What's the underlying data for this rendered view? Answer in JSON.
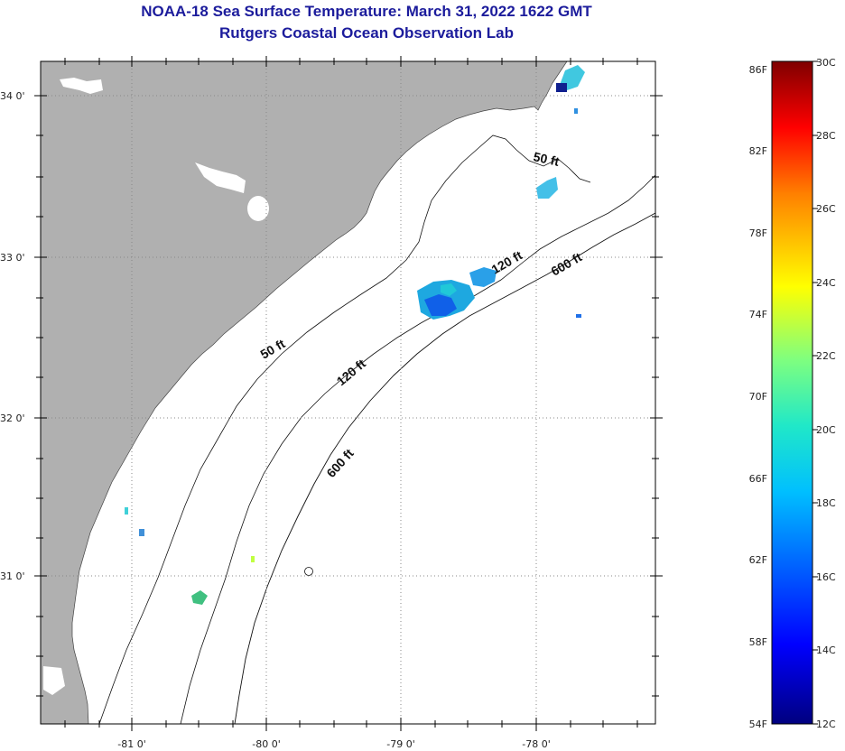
{
  "title": {
    "line1": "NOAA-18 Sea Surface Temperature:  March 31, 2022 1622 GMT",
    "line2": "Rutgers Coastal Ocean Observation Lab"
  },
  "map": {
    "lat_labels": [
      "34 0'",
      "33 0'",
      "32 0'",
      "31 0'"
    ],
    "lon_labels": [
      "-81 0'",
      "-80 0'",
      "-79 0'",
      "-78 0'"
    ],
    "contour_labels": [
      "50 ft",
      "50 ft",
      "120 ft",
      "120 ft",
      "600 ft",
      "600 ft"
    ],
    "colors": {
      "land": "#b0b0b0",
      "ocean": "#ffffff",
      "grid": "#777777"
    }
  },
  "colorbar": {
    "fahrenheit_labels": [
      "86F",
      "82F",
      "78F",
      "74F",
      "70F",
      "66F",
      "62F",
      "58F",
      "54F"
    ],
    "celsius_labels": [
      "30C",
      "28C",
      "26C",
      "24C",
      "22C",
      "20C",
      "18C",
      "16C",
      "14C",
      "12C"
    ],
    "range_c": [
      12,
      30
    ],
    "range_f": [
      54,
      86
    ]
  }
}
